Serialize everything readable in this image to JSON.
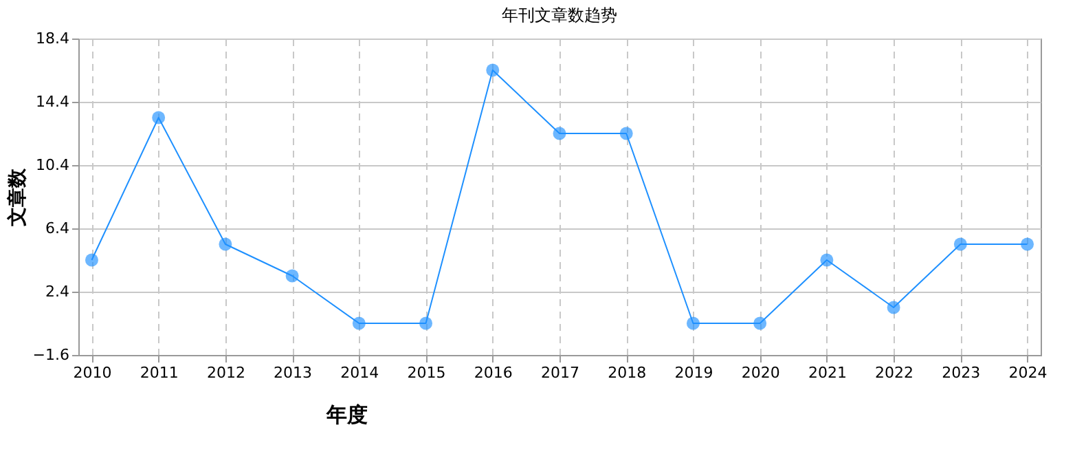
{
  "chart_data": {
    "type": "line",
    "title": "年刊文章数趋势",
    "xlabel": "年度",
    "ylabel": "文章数",
    "categories": [
      "2010",
      "2011",
      "2012",
      "2013",
      "2014",
      "2015",
      "2016",
      "2017",
      "2018",
      "2019",
      "2020",
      "2021",
      "2022",
      "2023",
      "2024"
    ],
    "series": [
      {
        "color": "#1e90ff",
        "values": [
          4.4,
          13.4,
          5.4,
          3.4,
          0.4,
          0.4,
          16.4,
          12.4,
          12.4,
          0.4,
          0.4,
          4.4,
          1.4,
          5.4,
          5.4
        ]
      }
    ],
    "ylim": [
      -1.6,
      18.4
    ],
    "yticks": [
      -1.6,
      2.4,
      6.4,
      10.4,
      14.4,
      18.4
    ],
    "grid": true,
    "marker": "circle",
    "line_style": "solid"
  }
}
